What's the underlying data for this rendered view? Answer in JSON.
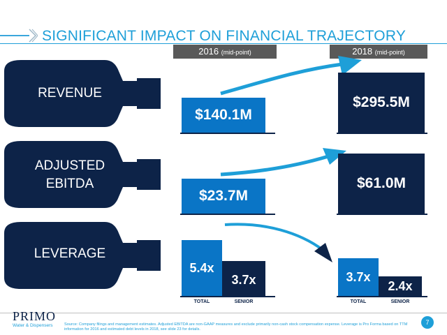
{
  "title": "SIGNIFICANT IMPACT ON FINANCIAL TRAJECTORY",
  "columns": [
    {
      "year": "2016",
      "note": "(mid-point)"
    },
    {
      "year": "2018",
      "note": "(mid-point)"
    }
  ],
  "rows": {
    "revenue": {
      "label": "REVENUE",
      "v2016": "$140.1M",
      "v2018": "$295.5M"
    },
    "ebitda": {
      "label_line1": "ADJUSTED",
      "label_line2": "EBITDA",
      "v2016": "$23.7M",
      "v2018": "$61.0M"
    },
    "leverage": {
      "label": "LEVERAGE",
      "total_2016": "5.4x",
      "senior_2016": "3.7x",
      "total_2018": "3.7x",
      "senior_2018": "2.4x",
      "total_label": "TOTAL",
      "senior_label": "SENIOR"
    }
  },
  "footer": {
    "logo_main": "PRIMO",
    "logo_sub": "Water & Dispensers",
    "source": "Source: Company filings and management estimates. Adjusted EBITDA are non-GAAP measures and exclude primarily non-cash stock compensation expense. Leverage is Pro Forma based on TTM information for 2016 and estimated debt levels in 2018, see slide 23 for details.",
    "page": "7"
  },
  "colors": {
    "accent": "#1e9fd8",
    "navy": "#0d2348",
    "blue": "#0a75c6",
    "tab_gray": "#595959"
  }
}
